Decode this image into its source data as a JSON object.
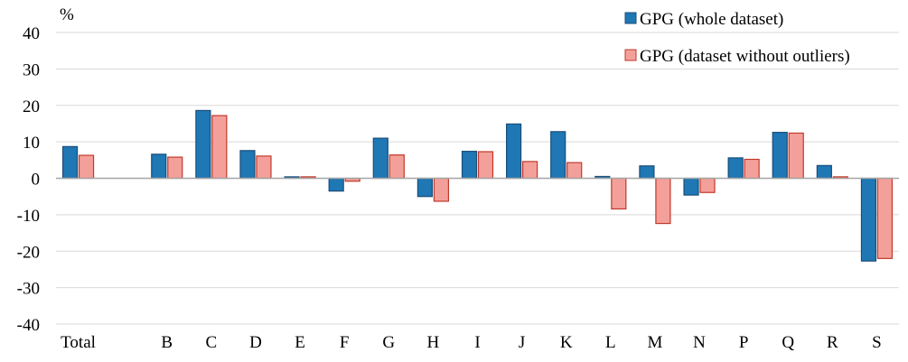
{
  "chart_data": {
    "type": "bar",
    "title": "",
    "xlabel": "",
    "ylabel": "%",
    "ylim": [
      -40,
      40
    ],
    "yticks": [
      -40,
      -30,
      -20,
      -10,
      0,
      10,
      20,
      30,
      40
    ],
    "grid": true,
    "legend_position": "top-right",
    "categories": [
      "Total",
      "",
      "B",
      "C",
      "D",
      "E",
      "F",
      "G",
      "H",
      "I",
      "J",
      "K",
      "L",
      "M",
      "N",
      "P",
      "Q",
      "R",
      "S"
    ],
    "series": [
      {
        "name": "GPG (whole dataset)",
        "color": "#1f77b4",
        "border": "#1a4e7a",
        "values": [
          8.7,
          null,
          6.6,
          18.6,
          7.6,
          0.4,
          -3.5,
          11.0,
          -5.0,
          7.4,
          14.9,
          12.8,
          0.5,
          3.4,
          -4.6,
          5.6,
          12.6,
          3.5,
          -22.7
        ]
      },
      {
        "name": "GPG (dataset without outliers)",
        "color": "#f4a09a",
        "border": "#c0392b",
        "values": [
          6.3,
          null,
          5.8,
          17.2,
          6.1,
          0.4,
          -0.8,
          6.4,
          -6.3,
          7.3,
          4.6,
          4.3,
          -8.4,
          -12.4,
          -3.9,
          5.2,
          12.4,
          0.4,
          -22.0
        ]
      }
    ]
  }
}
